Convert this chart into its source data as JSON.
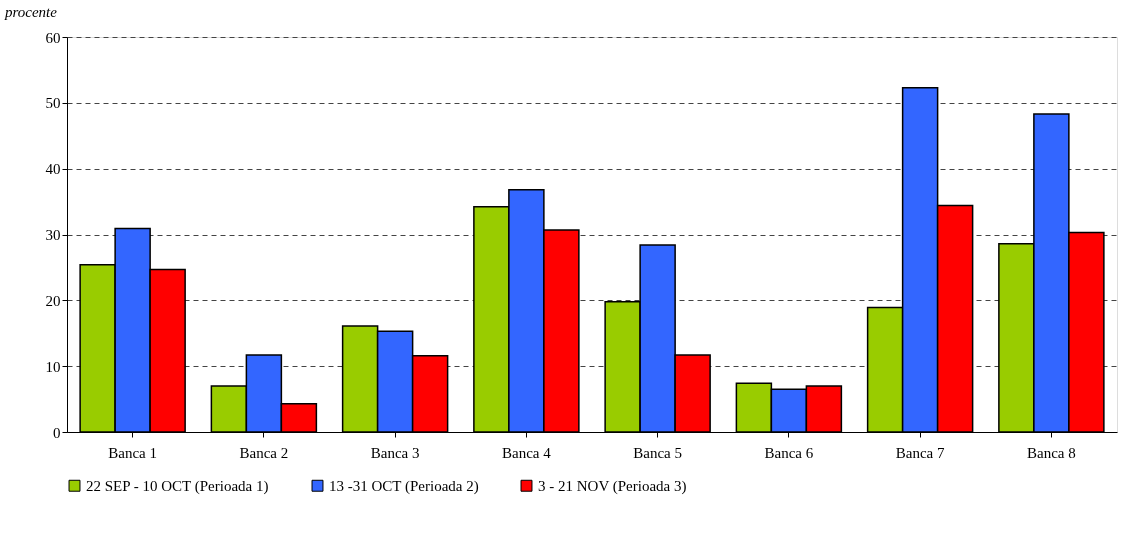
{
  "chart_data": {
    "type": "bar",
    "ylabel": "procente",
    "categories": [
      "Banca 1",
      "Banca 2",
      "Banca 3",
      "Banca 4",
      "Banca 5",
      "Banca 6",
      "Banca 7",
      "Banca 8"
    ],
    "series": [
      {
        "name": "22 SEP - 10 OCT (Perioada 1)",
        "color": "#99cc00",
        "values": [
          25.4,
          7.0,
          16.1,
          34.2,
          19.8,
          7.4,
          18.9,
          28.6
        ]
      },
      {
        "name": "13 -31 OCT (Perioada 2)",
        "color": "#3366ff",
        "values": [
          30.9,
          11.7,
          15.3,
          36.8,
          28.4,
          6.5,
          52.3,
          48.3
        ]
      },
      {
        "name": "3 - 21 NOV (Perioada 3)",
        "color": "#ff0000",
        "values": [
          24.7,
          4.3,
          11.6,
          30.7,
          11.7,
          7.0,
          34.4,
          30.3
        ]
      }
    ],
    "ylim": [
      0,
      60
    ],
    "yticks": [
      0,
      10,
      20,
      30,
      40,
      50,
      60
    ],
    "grid": "y",
    "legend": "bottom"
  }
}
